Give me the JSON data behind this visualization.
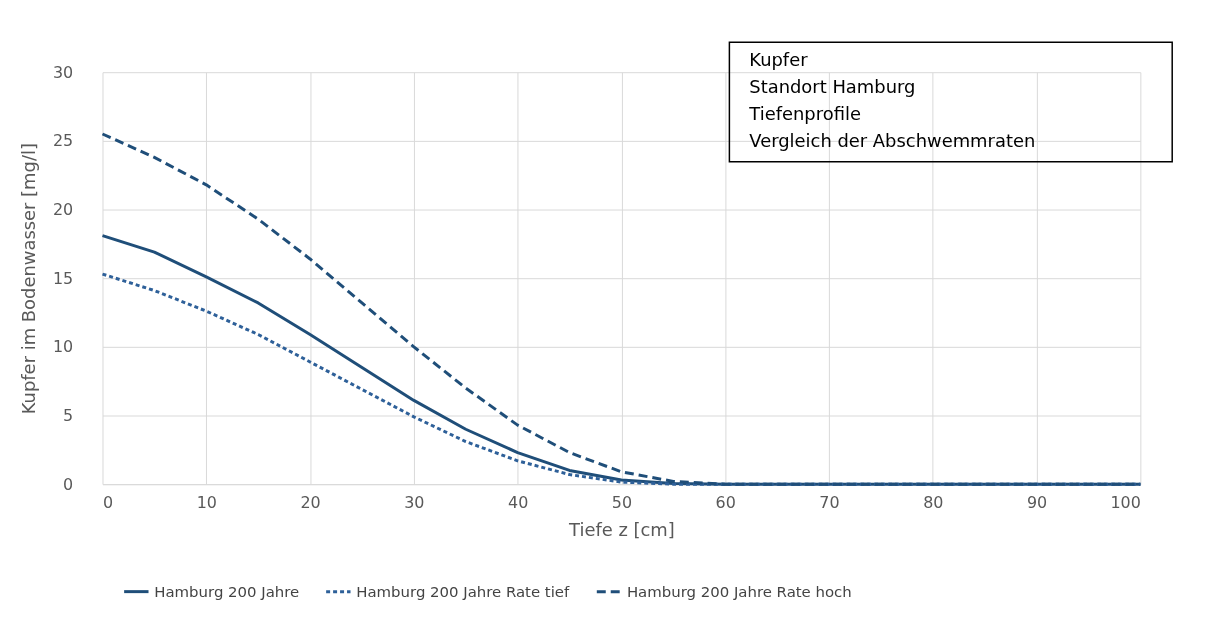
{
  "chart_data": {
    "type": "line",
    "xlabel": "Tiefe z [cm]",
    "ylabel": "Kupfer im Bodenwasser [mg/l]",
    "x": [
      0,
      5,
      10,
      15,
      20,
      25,
      30,
      35,
      40,
      45,
      50,
      55,
      60,
      70,
      80,
      90,
      100
    ],
    "series": [
      {
        "name": "Hamburg 200 Jahre",
        "color": "#1f4e79",
        "line_style": "solid",
        "values": [
          18.1,
          16.9,
          15.1,
          13.2,
          10.9,
          8.5,
          6.1,
          4.0,
          2.3,
          1.0,
          0.3,
          0.05,
          0,
          0,
          0,
          0,
          0
        ]
      },
      {
        "name": "Hamburg 200 Jahre Rate tief",
        "color": "#2e6099",
        "line_style": "dotted",
        "values": [
          15.3,
          14.1,
          12.6,
          10.9,
          8.9,
          6.9,
          4.9,
          3.1,
          1.7,
          0.7,
          0.15,
          0,
          0,
          0,
          0,
          0,
          0
        ]
      },
      {
        "name": "Hamburg 200 Jahre Rate hoch",
        "color": "#1f4e79",
        "line_style": "dashed",
        "values": [
          25.5,
          23.8,
          21.8,
          19.3,
          16.4,
          13.2,
          10.0,
          7.0,
          4.3,
          2.3,
          0.9,
          0.2,
          0,
          0,
          0,
          0,
          0
        ]
      }
    ],
    "xlim": [
      0,
      100
    ],
    "xticks": [
      0,
      10,
      20,
      30,
      40,
      50,
      60,
      70,
      80,
      90,
      100
    ],
    "ylim": [
      0,
      30
    ],
    "yticks": [
      0,
      5,
      10,
      15,
      20,
      25,
      30
    ],
    "grid": true,
    "legend": "bottom",
    "marker": "none",
    "annotations": [
      "Kupfer",
      "Standort Hamburg",
      "Tiefenprofile",
      "Vergleich der Abschwemmraten"
    ]
  }
}
